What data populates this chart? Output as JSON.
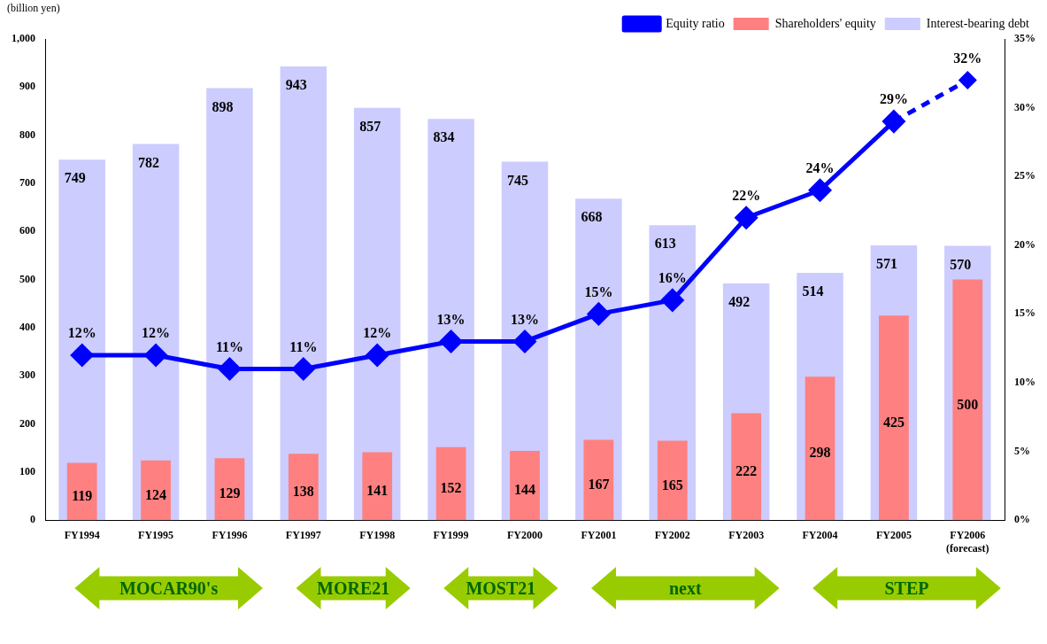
{
  "chart_data": {
    "type": "bar",
    "ylabel": "(billion yen)",
    "categories": [
      "FY1994",
      "FY1995",
      "FY1996",
      "FY1997",
      "FY1998",
      "FY1999",
      "FY2000",
      "FY2001",
      "FY2002",
      "FY2003",
      "FY2004",
      "FY2005",
      "FY2006\n(forecast)"
    ],
    "series": [
      {
        "name": "Interest-bearing debt",
        "color": "#ccccff",
        "values": [
          749,
          782,
          898,
          943,
          857,
          834,
          745,
          668,
          613,
          492,
          514,
          571,
          570
        ]
      },
      {
        "name": "Shareholders' equity",
        "color": "#ff8080",
        "values": [
          119,
          124,
          129,
          138,
          141,
          152,
          144,
          167,
          165,
          222,
          298,
          425,
          500
        ]
      },
      {
        "name": "Equity ratio",
        "type": "line",
        "axis": "y2",
        "color": "#0000ff",
        "marker": "diamond",
        "line_style": "solid",
        "values": [
          12,
          12,
          11,
          11,
          12,
          13,
          13,
          15,
          16,
          22,
          24,
          29,
          null
        ],
        "value_labels": [
          "12%",
          "12%",
          "11%",
          "11%",
          "12%",
          "13%",
          "13%",
          "15%",
          "16%",
          "22%",
          "24%",
          "29%",
          null
        ]
      },
      {
        "type": "line",
        "axis": "y2",
        "color": "#0000ff",
        "marker": "diamond",
        "line_style": "dashed",
        "values": [
          null,
          null,
          null,
          null,
          null,
          null,
          null,
          null,
          null,
          null,
          null,
          29,
          32
        ],
        "value_labels": [
          null,
          null,
          null,
          null,
          null,
          null,
          null,
          null,
          null,
          null,
          null,
          null,
          "32%"
        ]
      }
    ],
    "data_labels": true,
    "ylim": [
      0,
      1000
    ],
    "yticks": [
      0,
      100,
      200,
      300,
      400,
      500,
      600,
      700,
      800,
      900,
      {
        "value": 1000,
        "label": "1,000"
      }
    ],
    "y2lim": [
      0,
      35
    ],
    "y2ticks": [
      {
        "value": 0,
        "label": "0%"
      },
      {
        "value": 5,
        "label": "5%"
      },
      {
        "value": 10,
        "label": "10%"
      },
      {
        "value": 15,
        "label": "15%"
      },
      {
        "value": 20,
        "label": "20%"
      },
      {
        "value": 25,
        "label": "25%"
      },
      {
        "value": 30,
        "label": "30%"
      },
      {
        "value": 35,
        "label": "35%"
      }
    ],
    "grid": false,
    "legend": "top right",
    "annotations": [
      "MOCAR90's",
      "MORE21",
      "MOST21",
      "next",
      "STEP"
    ]
  }
}
